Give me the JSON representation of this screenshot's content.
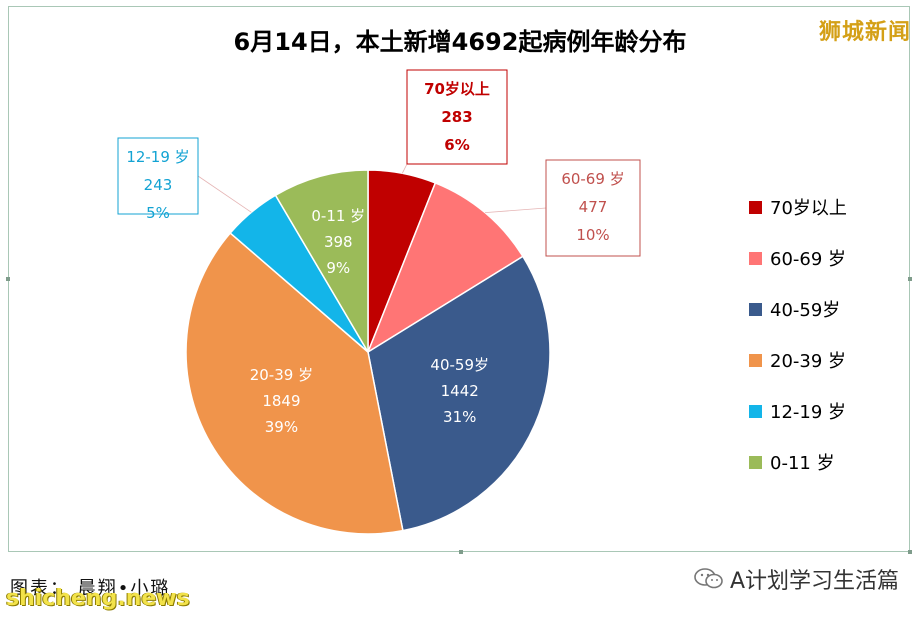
{
  "chart_data": {
    "type": "pie",
    "title": "6月14日，本土新增4692起病例年龄分布",
    "series": [
      {
        "name": "70岁以上",
        "value": 283,
        "percent": "6%",
        "color": "#c00000",
        "label_color": "#c00000"
      },
      {
        "name": "60-69 岁",
        "value": 477,
        "percent": "10%",
        "color": "#ff7575",
        "label_color": "#c0504d"
      },
      {
        "name": "40-59岁",
        "value": 1442,
        "percent": "31%",
        "color": "#3a5a8c",
        "label_color": "#ffffff"
      },
      {
        "name": "20-39 岁",
        "value": 1849,
        "percent": "39%",
        "color": "#f0944b",
        "label_color": "#ffffff"
      },
      {
        "name": "12-19 岁",
        "value": 243,
        "percent": "5%",
        "color": "#13b5e9",
        "label_color": "#13a3d3"
      },
      {
        "name": "0-11 岁",
        "value": 398,
        "percent": "9%",
        "color": "#9bbb59",
        "label_color": "#ffffff"
      }
    ],
    "label_names": [
      "70岁以上",
      "60-69 岁",
      "40-59岁",
      "20-39 岁",
      "12-19 岁",
      "0-11 岁"
    ],
    "legend": [
      "70岁以上",
      "60-69 岁",
      "40-59岁",
      "20-39 岁",
      "12-19 岁",
      "0-11 岁"
    ],
    "legend_position": "right"
  },
  "brand": "狮城新闻",
  "footer": {
    "credit": "图表：    晨翔•小璐",
    "site": "shicheng.news",
    "wechat": "A计划学习生活篇"
  }
}
